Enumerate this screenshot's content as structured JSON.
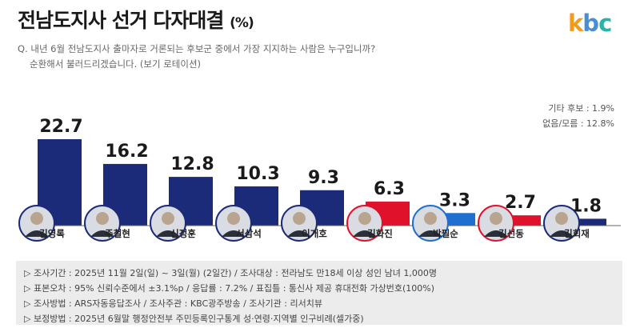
{
  "title": "전남도지사 선거 다자대결",
  "title_unit": "(%)",
  "logo": "kbc",
  "question_line1": "Q. 내년 6월 전남도지사 출마자로 거론되는 후보군 중에서 가장 지지하는 사람은 누구입니까?",
  "question_line2": "순환해서 불러드리겠습니다. (보기 로테이션)",
  "others": {
    "line1": "기타 후보 : 1.9%",
    "line2": "없음/모름 : 12.8%"
  },
  "notes": [
    "▷ 조사기간 : 2025년 11월 2일(일) ~ 3일(월) (2일간) / 조사대상 : 전라남도 만18세 이상 성인 남녀 1,000명",
    "▷ 표본오차 : 95% 신뢰수준에서 ±3.1%p / 응답률 : 7.2% / 표집틀 : 통신사 제공 휴대전화 가상번호(100%)",
    "▷ 조사방법 : ARS자동응답조사 / 조사주관 : KBC광주방송 / 조사기관 : 리서치뷰",
    "▷ 보정방법 : 2025년 6월말 행정안전부 주민등록인구통계 성·연령·지역별 인구비례(셀가중)"
  ],
  "colors": {
    "navy": "#1c2a7a",
    "red": "#e0112b",
    "blue": "#1f6fd1",
    "baseline": "#666666"
  },
  "chart_data": {
    "type": "bar",
    "categories": [
      "김영록",
      "주철현",
      "신정훈",
      "서삼석",
      "이개호",
      "김화진",
      "박필순",
      "김선동",
      "김회재"
    ],
    "values": [
      22.7,
      16.2,
      12.8,
      10.3,
      9.3,
      6.3,
      3.3,
      2.7,
      1.8
    ],
    "bar_colors": [
      "#1c2a7a",
      "#1c2a7a",
      "#1c2a7a",
      "#1c2a7a",
      "#1c2a7a",
      "#e0112b",
      "#1f6fd1",
      "#e0112b",
      "#1c2a7a"
    ],
    "ylim": [
      0,
      25
    ],
    "grid": false,
    "legend": "none"
  }
}
